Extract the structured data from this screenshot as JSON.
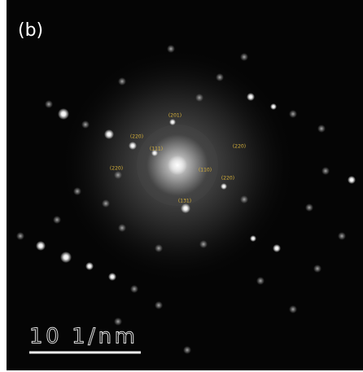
{
  "panel_label": "(b)",
  "scale_bar": {
    "label": "10 1/nm"
  },
  "spot_labels": [
    "(201)",
    "(220)",
    "(111)",
    "(220)",
    "(110)",
    "(220)",
    "(220)",
    "(131)"
  ]
}
